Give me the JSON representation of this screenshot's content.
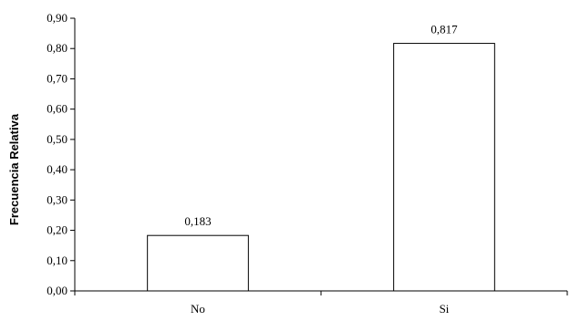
{
  "chart_data": {
    "type": "bar",
    "title": "",
    "xlabel": "",
    "ylabel": "Frecuencia Relativa",
    "categories": [
      "No",
      "Si"
    ],
    "values": [
      0.183,
      0.817
    ],
    "data_labels": [
      "0,183",
      "0,817"
    ],
    "ylim": [
      0,
      0.9
    ],
    "yticks": [
      0,
      0.1,
      0.2,
      0.3,
      0.4,
      0.5,
      0.6,
      0.7,
      0.8,
      0.9
    ],
    "ytick_labels": [
      "0,00",
      "0,10",
      "0,20",
      "0,30",
      "0,40",
      "0,50",
      "0,60",
      "0,70",
      "0,80",
      "0,90"
    ],
    "grid": false,
    "legend": "none",
    "bar_fill": "#ffffff",
    "bar_stroke": "#000000"
  }
}
